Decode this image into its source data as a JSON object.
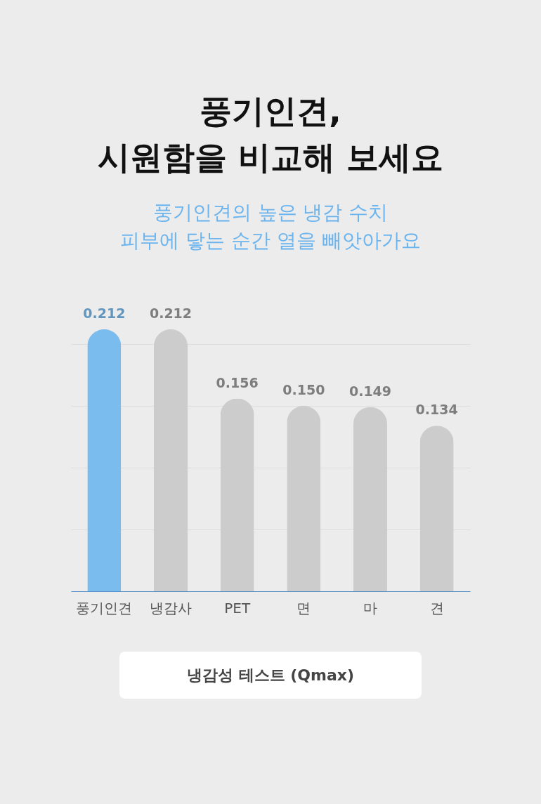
{
  "chart_data": {
    "type": "bar",
    "title": [
      "풍기인견,",
      "시원함을 비교해 보세요"
    ],
    "subtitle": [
      "풍기인견의 높은 냉감 수치",
      "피부에 닿는 순간 열을 빼앗아가요"
    ],
    "categories": [
      "풍기인견",
      "냉감사",
      "PET",
      "면",
      "마",
      "견"
    ],
    "values": [
      0.212,
      0.212,
      0.156,
      0.15,
      0.149,
      0.134
    ],
    "colors": [
      "#7bbcee",
      "#cccccc",
      "#cccccc",
      "#cccccc",
      "#cccccc",
      "#cccccc"
    ],
    "value_labels": [
      "0.212",
      "0.212",
      "0.156",
      "0.150",
      "0.149",
      "0.134"
    ],
    "grid": "y",
    "tick_labels": "x",
    "annotations": [
      "냉감성 테스트 (Qmax)"
    ]
  }
}
